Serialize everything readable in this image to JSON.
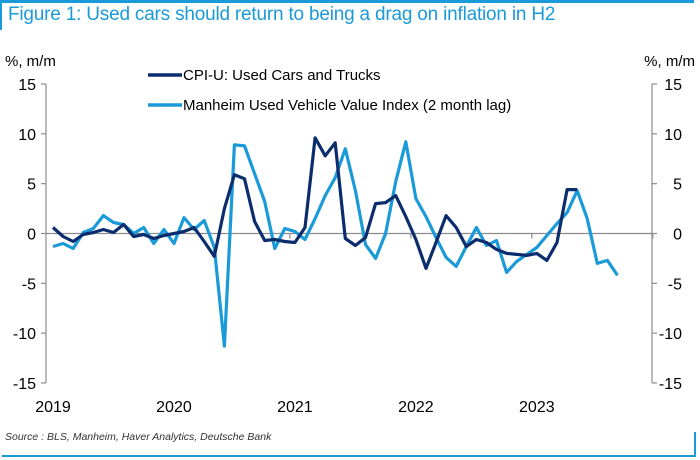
{
  "figure": {
    "title": "Figure 1: Used cars should return to being a drag on inflation in H2",
    "source": "Source : BLS, Manheim, Haver Analytics, Deutsche Bank",
    "frame_color": "#1a9ad8"
  },
  "chart_data": {
    "type": "line",
    "title": "Figure 1: Used cars should return to being a drag on inflation in H2",
    "ylabel_left": "%, m/m",
    "ylabel_right": "%, m/m",
    "xlabel": "",
    "ylim": [
      -15,
      15
    ],
    "yticks": [
      15,
      10,
      5,
      0,
      -5,
      -10,
      -15
    ],
    "ytick_labels": [
      "15",
      "10",
      "5",
      "0",
      "-5",
      "-10",
      "-15"
    ],
    "x_tick_labels": [
      "2019",
      "2020",
      "2021",
      "2022",
      "2023"
    ],
    "x_start": "2019-01",
    "x_frequency": "monthly",
    "legend_position": "top-center",
    "grid": false,
    "series": [
      {
        "name": "CPI-U: Used Cars and Trucks",
        "color": "#0b2d6e",
        "values": [
          0.6,
          -0.3,
          -0.8,
          -0.1,
          0.1,
          0.4,
          0.1,
          0.9,
          -0.3,
          -0.1,
          -0.5,
          -0.2,
          0.0,
          0.2,
          0.6,
          -0.8,
          -2.3,
          2.5,
          5.9,
          5.5,
          1.2,
          -0.7,
          -0.6,
          -0.8,
          -0.9,
          0.6,
          9.6,
          7.8,
          9.1,
          -0.5,
          -1.2,
          -0.4,
          3.0,
          3.1,
          3.8,
          1.7,
          -0.6,
          -3.5,
          -0.9,
          1.8,
          0.6,
          -1.3,
          -0.6,
          -0.9,
          -1.6,
          -2.0,
          -2.1,
          -2.2,
          -2.0,
          -2.7,
          -0.9,
          4.4,
          4.4
        ]
      },
      {
        "name": "Manheim Used Vehicle Value Index (2 month lag)",
        "color": "#1a9ad8",
        "values": [
          -1.3,
          -1.0,
          -1.5,
          0.1,
          0.5,
          1.8,
          1.1,
          0.9,
          0.0,
          0.6,
          -1.0,
          0.4,
          -1.0,
          1.6,
          0.4,
          1.3,
          -1.4,
          -11.3,
          8.9,
          8.8,
          6.0,
          3.2,
          -1.5,
          0.5,
          0.2,
          -0.6,
          1.5,
          3.8,
          5.6,
          8.5,
          4.3,
          -1.1,
          -2.5,
          0.0,
          5.2,
          9.2,
          3.5,
          1.7,
          -0.4,
          -2.4,
          -3.3,
          -1.3,
          0.6,
          -1.2,
          -0.7,
          -3.9,
          -2.8,
          -2.1,
          -1.4,
          -0.2,
          1.0,
          2.1,
          4.3,
          1.5,
          -3.0,
          -2.7,
          -4.2
        ]
      }
    ]
  }
}
